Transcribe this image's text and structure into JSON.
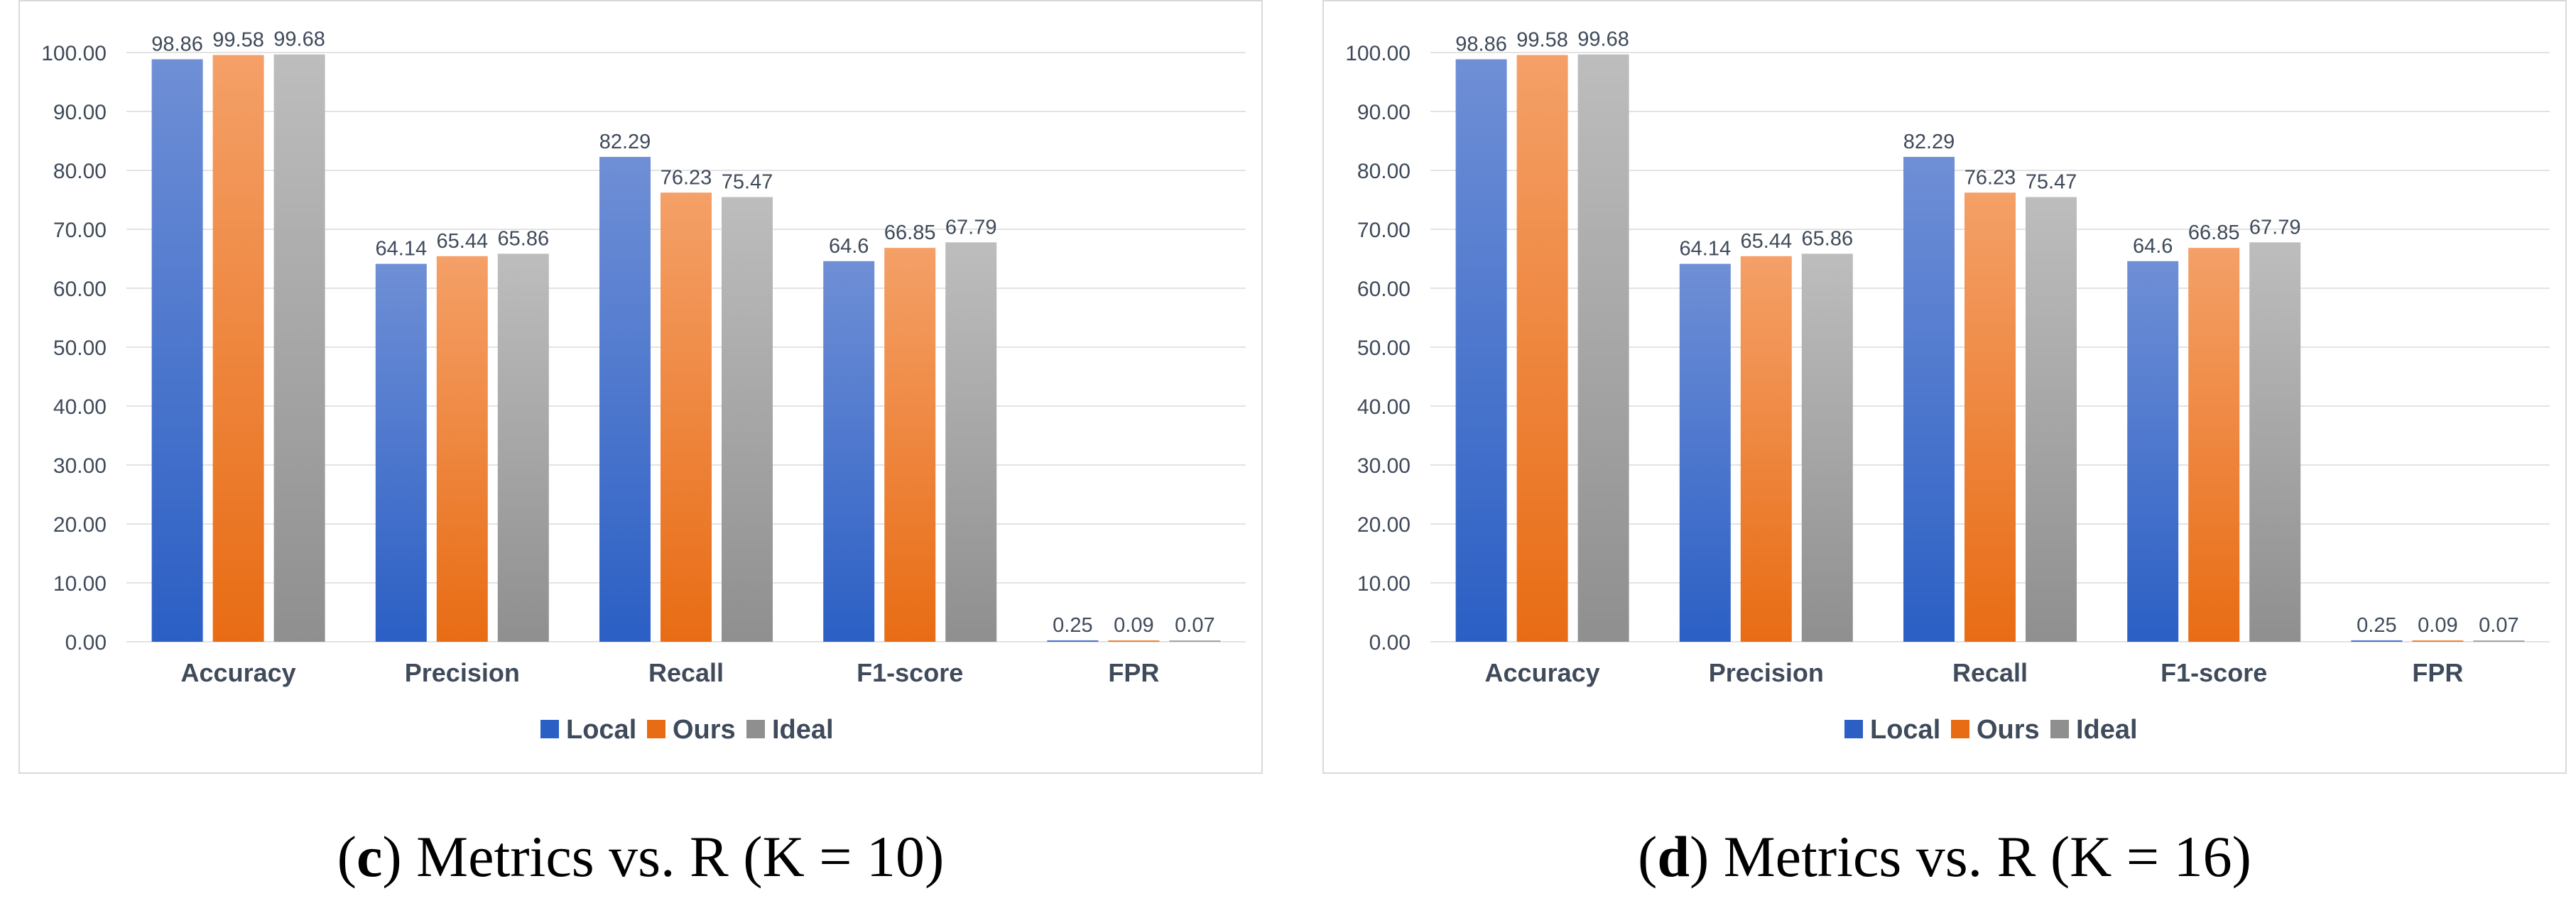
{
  "colors": {
    "local_top": "#6f8fd6",
    "local_bottom": "#2b5fc4",
    "ours_top": "#f4a068",
    "ours_bottom": "#e86c14",
    "ideal_top": "#bdbdbd",
    "ideal_bottom": "#8f8f8f",
    "grid": "#e3e3e3",
    "axis_text": "#3f4a5a",
    "label_text": "#3f4a5a"
  },
  "chart_data": [
    {
      "type": "bar",
      "categories": [
        "Accuracy",
        "Precision",
        "Recall",
        "F1-score",
        "FPR"
      ],
      "series": [
        {
          "name": "Local",
          "values": [
            98.86,
            64.14,
            82.29,
            64.6,
            0.25
          ],
          "labels": [
            "98.86",
            "64.14",
            "82.29",
            "64.6",
            "0.25"
          ]
        },
        {
          "name": "Ours",
          "values": [
            99.58,
            65.44,
            76.23,
            66.85,
            0.09
          ],
          "labels": [
            "99.58",
            "65.44",
            "76.23",
            "66.85",
            "0.09"
          ]
        },
        {
          "name": "Ideal",
          "values": [
            99.68,
            65.86,
            75.47,
            67.79,
            0.07
          ],
          "labels": [
            "99.68",
            "65.86",
            "75.47",
            "67.79",
            "0.07"
          ]
        }
      ],
      "yticks": [
        "0.00",
        "10.00",
        "20.00",
        "30.00",
        "40.00",
        "50.00",
        "60.00",
        "70.00",
        "80.00",
        "90.00",
        "100.00"
      ],
      "ylim": [
        0,
        100
      ],
      "legend": "bottom",
      "caption": {
        "letter": "c",
        "text": ") Metrics vs. R (K = 10)",
        "open": "("
      }
    },
    {
      "type": "bar",
      "categories": [
        "Accuracy",
        "Precision",
        "Recall",
        "F1-score",
        "FPR"
      ],
      "series": [
        {
          "name": "Local",
          "values": [
            98.86,
            64.14,
            82.29,
            64.6,
            0.25
          ],
          "labels": [
            "98.86",
            "64.14",
            "82.29",
            "64.6",
            "0.25"
          ]
        },
        {
          "name": "Ours",
          "values": [
            99.58,
            65.44,
            76.23,
            66.85,
            0.09
          ],
          "labels": [
            "99.58",
            "65.44",
            "76.23",
            "66.85",
            "0.09"
          ]
        },
        {
          "name": "Ideal",
          "values": [
            99.68,
            65.86,
            75.47,
            67.79,
            0.07
          ],
          "labels": [
            "99.68",
            "65.86",
            "75.47",
            "67.79",
            "0.07"
          ]
        }
      ],
      "yticks": [
        "0.00",
        "10.00",
        "20.00",
        "30.00",
        "40.00",
        "50.00",
        "60.00",
        "70.00",
        "80.00",
        "90.00",
        "100.00"
      ],
      "ylim": [
        0,
        100
      ],
      "legend": "bottom",
      "caption": {
        "letter": "d",
        "text": ") Metrics vs. R (K = 16)",
        "open": "("
      }
    }
  ]
}
